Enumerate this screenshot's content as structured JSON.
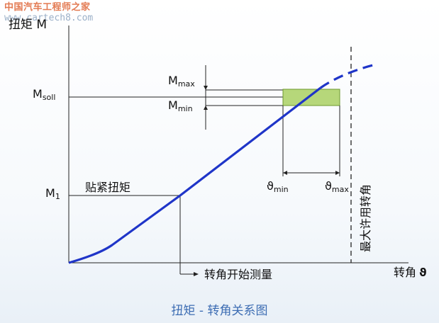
{
  "watermark": {
    "line1": "中国汽车工程师之家",
    "line2": "www.cartech8.com"
  },
  "labels": {
    "y_axis": "扭矩 M",
    "m_soll_main": "M",
    "m_soll_sub": "soll",
    "m1_main": "M",
    "m1_sub": "1",
    "mmax_main": "M",
    "mmax_sub": "max",
    "mmin_main": "M",
    "mmin_sub": "min",
    "seating_torque": "贴紧扭矩",
    "angle_start": "转角开始测量",
    "theta_min_main": "ϑ",
    "theta_min_sub": "min",
    "theta_max_main": "ϑ",
    "theta_max_sub": "max",
    "max_angle": "最大许用转角",
    "x_axis": "转角",
    "x_axis_symbol": "ϑ"
  },
  "caption": "扭矩 - 转角关系图",
  "colors": {
    "curve": "#1f35c8",
    "band_fill": "#b6d77a",
    "band_stroke": "#6e9a2e",
    "caption": "#3d6db3"
  }
}
